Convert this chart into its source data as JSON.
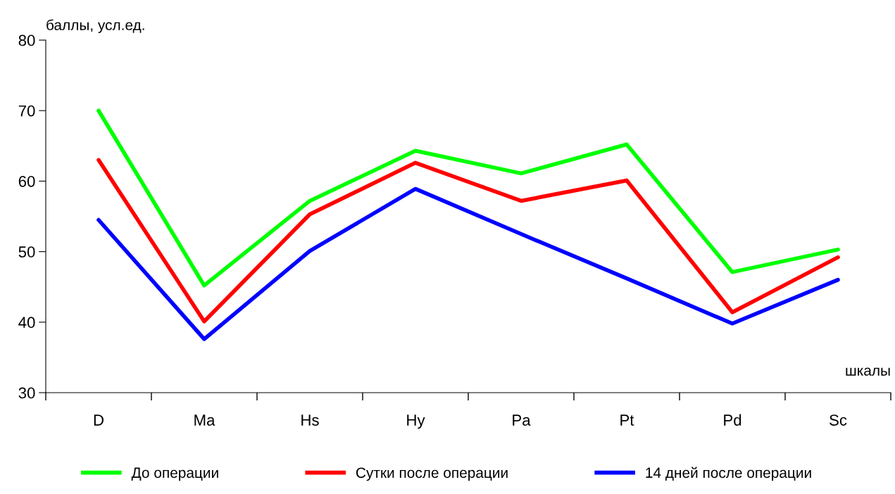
{
  "chart_data": {
    "type": "line",
    "xlabel": "шкалы",
    "ylabel": "баллы, усл.ед.",
    "categories": [
      "D",
      "Ma",
      "Hs",
      "Hy",
      "Pa",
      "Pt",
      "Pd",
      "Sc"
    ],
    "series": [
      {
        "name": "До операции",
        "color": "#00ff00",
        "values": [
          70,
          45.2,
          57.2,
          64.3,
          61.1,
          65.2,
          47.1,
          50.3
        ]
      },
      {
        "name": "Сутки после операции",
        "color": "#ff0000",
        "values": [
          63,
          40.1,
          55.3,
          62.6,
          57.2,
          60.1,
          41.4,
          49.2
        ]
      },
      {
        "name": "14 дней после операции",
        "color": "#0000ff",
        "values": [
          54.5,
          37.6,
          50.1,
          58.9,
          52.5,
          46.2,
          39.8,
          46.0
        ]
      }
    ],
    "ylim": [
      30,
      80
    ],
    "yticks": [
      30,
      40,
      50,
      60,
      70,
      80
    ],
    "grid": false,
    "legend": "bottom",
    "marker": "none",
    "line_style": "solid"
  }
}
